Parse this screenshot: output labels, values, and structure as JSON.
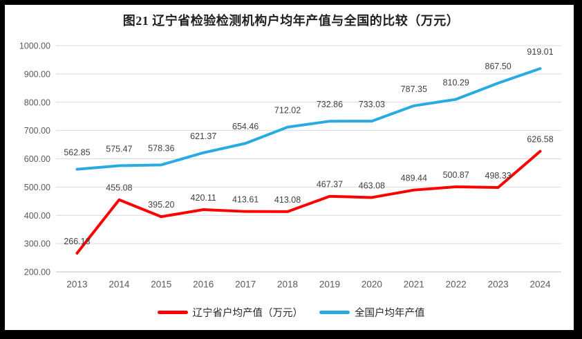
{
  "chart_data": {
    "type": "line",
    "title": "图21 辽宁省检验检测机构户均年产值与全国的比较（万元）",
    "categories": [
      "2013",
      "2014",
      "2015",
      "2016",
      "2017",
      "2018",
      "2019",
      "2020",
      "2021",
      "2022",
      "2023",
      "2024"
    ],
    "series": [
      {
        "id": "liaoning",
        "name": "辽宁省户均产值（万元）",
        "color": "#FF0000",
        "values": [
          266.13,
          455.08,
          395.2,
          420.11,
          413.61,
          413.08,
          467.37,
          463.08,
          489.44,
          500.87,
          498.33,
          626.58
        ]
      },
      {
        "id": "national",
        "name": "全国户均年产值",
        "color": "#29ABE2",
        "values": [
          562.85,
          575.47,
          578.36,
          621.37,
          654.46,
          712.02,
          732.86,
          733.03,
          787.35,
          810.29,
          867.5,
          919.01
        ]
      }
    ],
    "ylim": [
      200,
      1000
    ],
    "ytick_step": 100,
    "yticks": [
      "1000.00",
      "900.00",
      "800.00",
      "700.00",
      "600.00",
      "500.00",
      "400.00",
      "300.00",
      "200.00"
    ],
    "grid": true,
    "legend_position": "bottom",
    "data_labels": true
  },
  "colors": {
    "frame": "#000000",
    "background": "#FFFFFF",
    "gridline": "#D9D9D9",
    "axis_line": "#BFBFBF",
    "tick_text": "#595959",
    "data_label_text": "#404040",
    "title_text": "#1F1F1F"
  }
}
